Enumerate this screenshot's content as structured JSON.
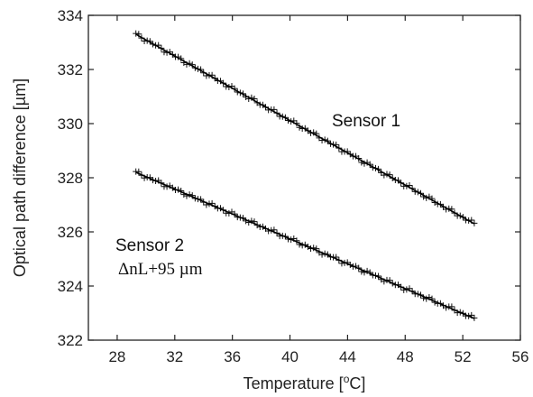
{
  "chart_data": {
    "type": "scatter",
    "xlabel": "Temperature [oC]",
    "xlabel_parts": {
      "base": "Temperature [",
      "sup": "o",
      "rest": "C]"
    },
    "ylabel": "Optical path difference [µm]",
    "xlim": [
      26,
      56
    ],
    "ylim": [
      322,
      334
    ],
    "x_ticks": [
      28,
      32,
      36,
      40,
      44,
      48,
      52,
      56
    ],
    "y_ticks": [
      322,
      324,
      326,
      328,
      330,
      332,
      334
    ],
    "grid": false,
    "marker": "+",
    "fit_line": true,
    "series": [
      {
        "name": "Sensor 1",
        "x_start": 29.3,
        "x_end": 52.8,
        "y_start": 333.3,
        "y_end": 326.3,
        "x": [
          29.3,
          31.0,
          33.0,
          35.0,
          37.0,
          39.0,
          41.0,
          43.0,
          45.0,
          47.0,
          49.0,
          51.0,
          52.8
        ],
        "y": [
          333.3,
          332.8,
          332.2,
          331.6,
          331.0,
          330.4,
          329.9,
          329.3,
          328.6,
          328.1,
          327.5,
          326.9,
          326.3
        ]
      },
      {
        "name": "Sensor 2",
        "x_start": 29.3,
        "x_end": 52.8,
        "y_start": 328.2,
        "y_end": 322.8,
        "x": [
          29.3,
          31.0,
          33.0,
          35.0,
          37.0,
          39.0,
          41.0,
          43.0,
          45.0,
          47.0,
          49.0,
          51.0,
          52.8
        ],
        "y": [
          328.2,
          327.8,
          327.3,
          326.9,
          326.4,
          326.0,
          325.5,
          325.1,
          324.6,
          324.2,
          323.7,
          323.2,
          322.8
        ]
      }
    ],
    "annotations": {
      "sensor1_label": "Sensor 1",
      "sensor2_label": "Sensor 2",
      "sensor2_offset": "ΔnL+95 µm"
    },
    "colors": {
      "axis": "#222222",
      "marker": "#111111",
      "line": "#000000"
    }
  }
}
